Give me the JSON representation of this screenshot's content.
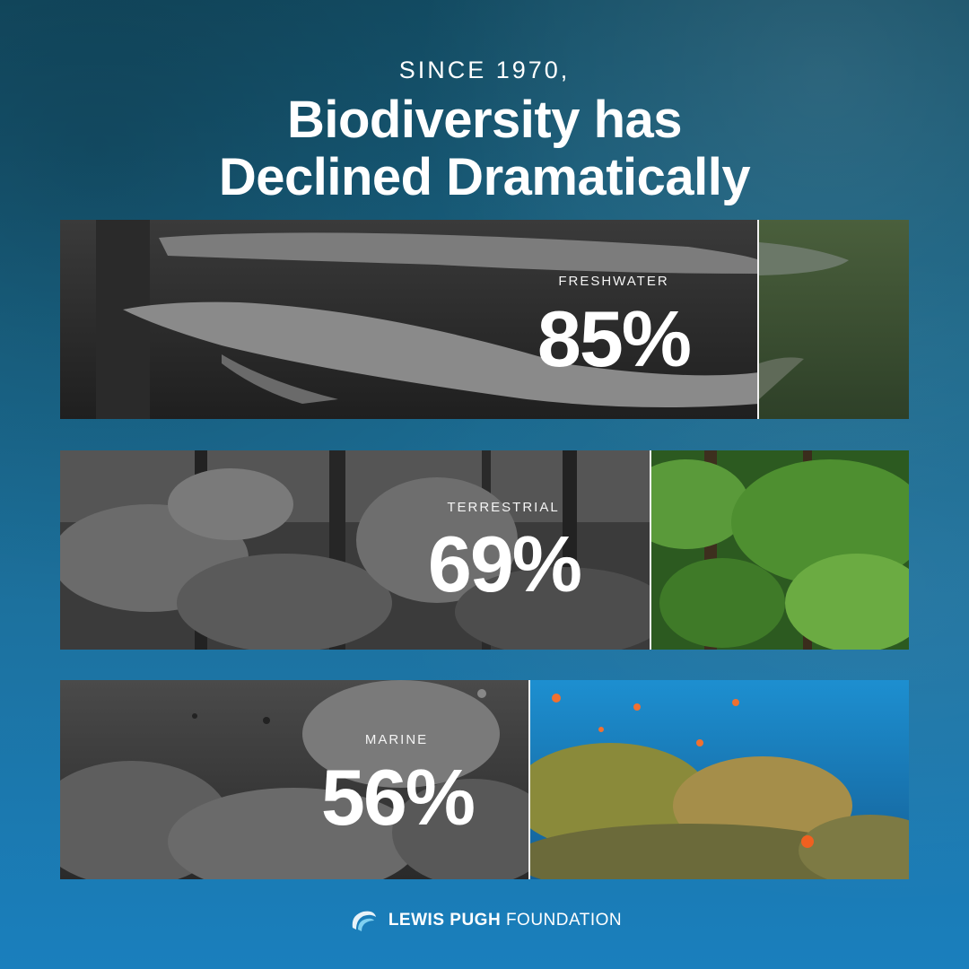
{
  "header": {
    "kicker": "SINCE 1970,",
    "headline_line1": "Biodiversity has",
    "headline_line2": "Declined Dramatically"
  },
  "panels": [
    {
      "label": "FRESHWATER",
      "value": "85%",
      "decline_fraction": 0.85,
      "accent": "#3c5a38"
    },
    {
      "label": "TERRESTRIAL",
      "value": "69%",
      "decline_fraction": 0.69,
      "accent": "#2f7a2a"
    },
    {
      "label": "MARINE",
      "value": "56%",
      "decline_fraction": 0.56,
      "accent": "#1d6fb5"
    }
  ],
  "footer": {
    "logo_icon": "wave-logo-icon",
    "brand_bold": "LEWIS PUGH",
    "brand_regular": "FOUNDATION"
  }
}
